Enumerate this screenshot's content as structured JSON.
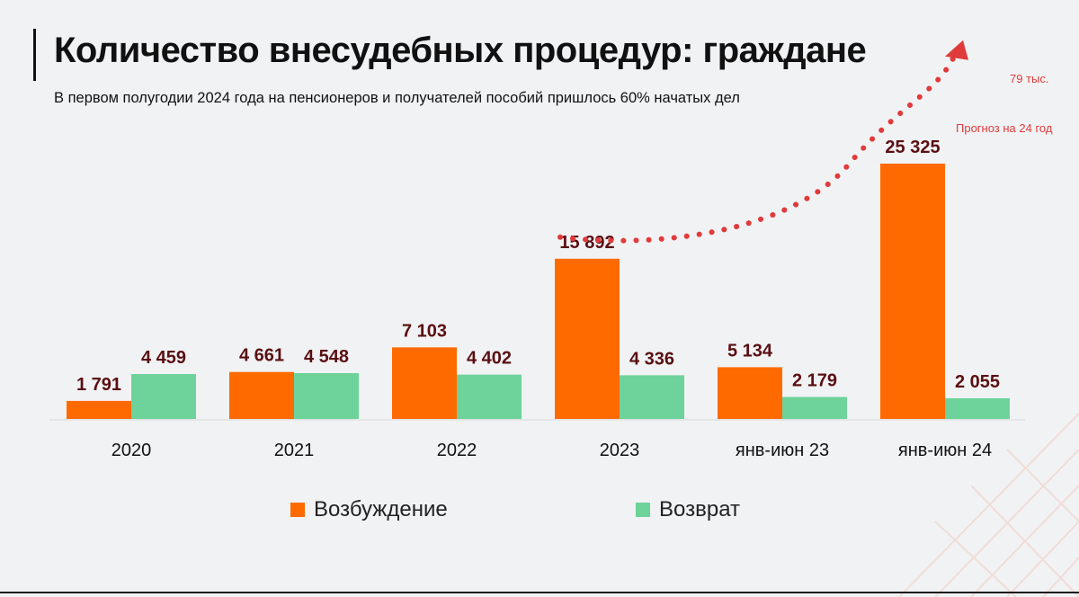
{
  "title": "Количество внесудебных процедур: граждане",
  "subtitle": "В первом полугодии 2024 года на пенсионеров и получателей пособий пришлось 60% начатых дел",
  "annotations": {
    "forecast_value": "79 тыс.",
    "forecast_label": "Прогноз на 24 год"
  },
  "colors": {
    "series1": "#ff6a00",
    "series2": "#6dd39a",
    "label": "#5a0f12",
    "forecast": "#e03b3b"
  },
  "legend": {
    "series1": "Возбуждение",
    "series2": "Возврат"
  },
  "chart_data": {
    "type": "bar",
    "title": "Количество внесудебных процедур: граждане",
    "categories": [
      "2020",
      "2021",
      "2022",
      "2023",
      "янв-июн 23",
      "янв-июн 24"
    ],
    "series": [
      {
        "name": "Возбуждение",
        "values": [
          1791,
          4661,
          7103,
          15892,
          5134,
          25325
        ],
        "labels": [
          "1 791",
          "4 661",
          "7 103",
          "15 892",
          "5 134",
          "25 325"
        ]
      },
      {
        "name": "Возврат",
        "values": [
          4459,
          4548,
          4402,
          4336,
          2179,
          2055
        ],
        "labels": [
          "4 459",
          "4 548",
          "4 402",
          "4 336",
          "2 179",
          "2 055"
        ]
      }
    ],
    "ylim": [
      0,
      25325
    ],
    "grid": false,
    "legend_position": "bottom",
    "forecast_annotation": "dotted arrow from 2023 to janv-jun 24 and beyond, labeled 79 тыс."
  }
}
